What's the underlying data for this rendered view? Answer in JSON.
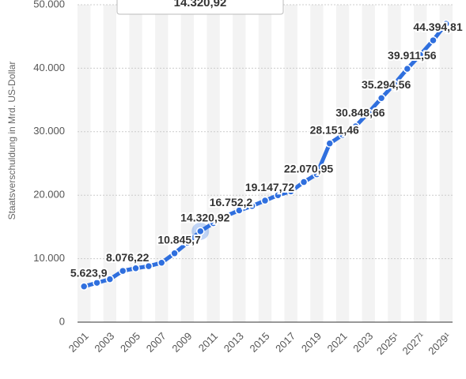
{
  "chart_data": {
    "type": "line",
    "y_axis_label": "Staatsverschuldung in Mrd. US-Dollar",
    "tooltip": "14.320,92",
    "categories": [
      "2001",
      "2002",
      "2003",
      "2004",
      "2005",
      "2006",
      "2007",
      "2008",
      "2009",
      "2010",
      "2011",
      "2012",
      "2013",
      "2014",
      "2015",
      "2016",
      "2017",
      "2018",
      "2019",
      "2020",
      "2021",
      "2022",
      "2023",
      "2024",
      "2025¹",
      "2026",
      "2027¹",
      "2028",
      "2029¹"
    ],
    "x_tick_labels": [
      "2001",
      null,
      "2003",
      null,
      "2005",
      null,
      "2007",
      null,
      "2009",
      null,
      "2011",
      null,
      "2013",
      null,
      "2015",
      null,
      "2017",
      null,
      "2019",
      null,
      "2021",
      null,
      "2023",
      null,
      "2025¹",
      null,
      "2027¹",
      null,
      "2029¹"
    ],
    "series": [
      {
        "name": "Staatsverschuldung",
        "color": "#2f6fde",
        "values": [
          5623.9,
          6200,
          6760,
          8076.22,
          8490,
          8820,
          9360,
          10845.7,
          12500,
          14320.92,
          15600,
          16752.2,
          17600,
          18300,
          19147.72,
          20000,
          20600,
          22070.95,
          23300,
          28151.46,
          29500,
          30848.66,
          33000,
          35294.56,
          37500,
          39911.56,
          42100,
          44394.81,
          47000
        ],
        "value_labels": [
          "5.623,9",
          null,
          null,
          "8.076,22",
          null,
          null,
          null,
          "10.845,7",
          null,
          "14.320,92",
          null,
          "16.752,2",
          null,
          null,
          "19.147,72",
          null,
          null,
          "22.070,95",
          null,
          "28.151,46",
          null,
          "30.848,66",
          null,
          "35.294,56",
          null,
          "39.911,56",
          null,
          "44.394,81",
          null
        ]
      }
    ],
    "highlight_index": 9,
    "ylim": [
      0,
      50000
    ],
    "yticks": [
      0,
      {
        "value": 10000,
        "label": "10.000"
      },
      {
        "value": 20000,
        "label": "20.000"
      },
      {
        "value": 30000,
        "label": "30.000"
      },
      {
        "value": 40000,
        "label": "40.000"
      },
      {
        "value": 50000,
        "label": "50.000"
      }
    ],
    "grid": true
  }
}
